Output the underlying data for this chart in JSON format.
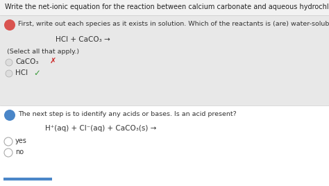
{
  "bg_color": "#f2f2f2",
  "title_bg": "#f2f2f2",
  "panel_a_bg": "#e8e8e8",
  "panel_b_bg": "#ffffff",
  "title_text": "Write the net-ionic equation for the reaction between calcium carbonate and aqueous hydrochloric acid.",
  "title_color": "#222222",
  "badge_a_color": "#d9534f",
  "badge_b_color": "#4a86c8",
  "badge_text_color": "#ffffff",
  "section_a_question": "First, write out each species as it exists in solution. Which of the reactants is (are) water-soluble?",
  "section_a_equation": "HCl + CaCO₃ →",
  "section_a_select": "(Select all that apply.)",
  "option1_label": "CaCO₃",
  "option1_mark": "✗",
  "option1_mark_color": "#cc2222",
  "option2_label": "HCl",
  "option2_mark": "✓",
  "option2_mark_color": "#3a9a3a",
  "section_b_question": "The next step is to identify any acids or bases. Is an acid present?",
  "section_b_equation": "H⁺(aq) + Cl⁻(aq) + CaCO₃(s) →",
  "radio_yes": "yes",
  "radio_no": "no",
  "bottom_line_color": "#4a86c8",
  "divider_color": "#cccccc",
  "font_color": "#333333",
  "check_color": "#999999"
}
